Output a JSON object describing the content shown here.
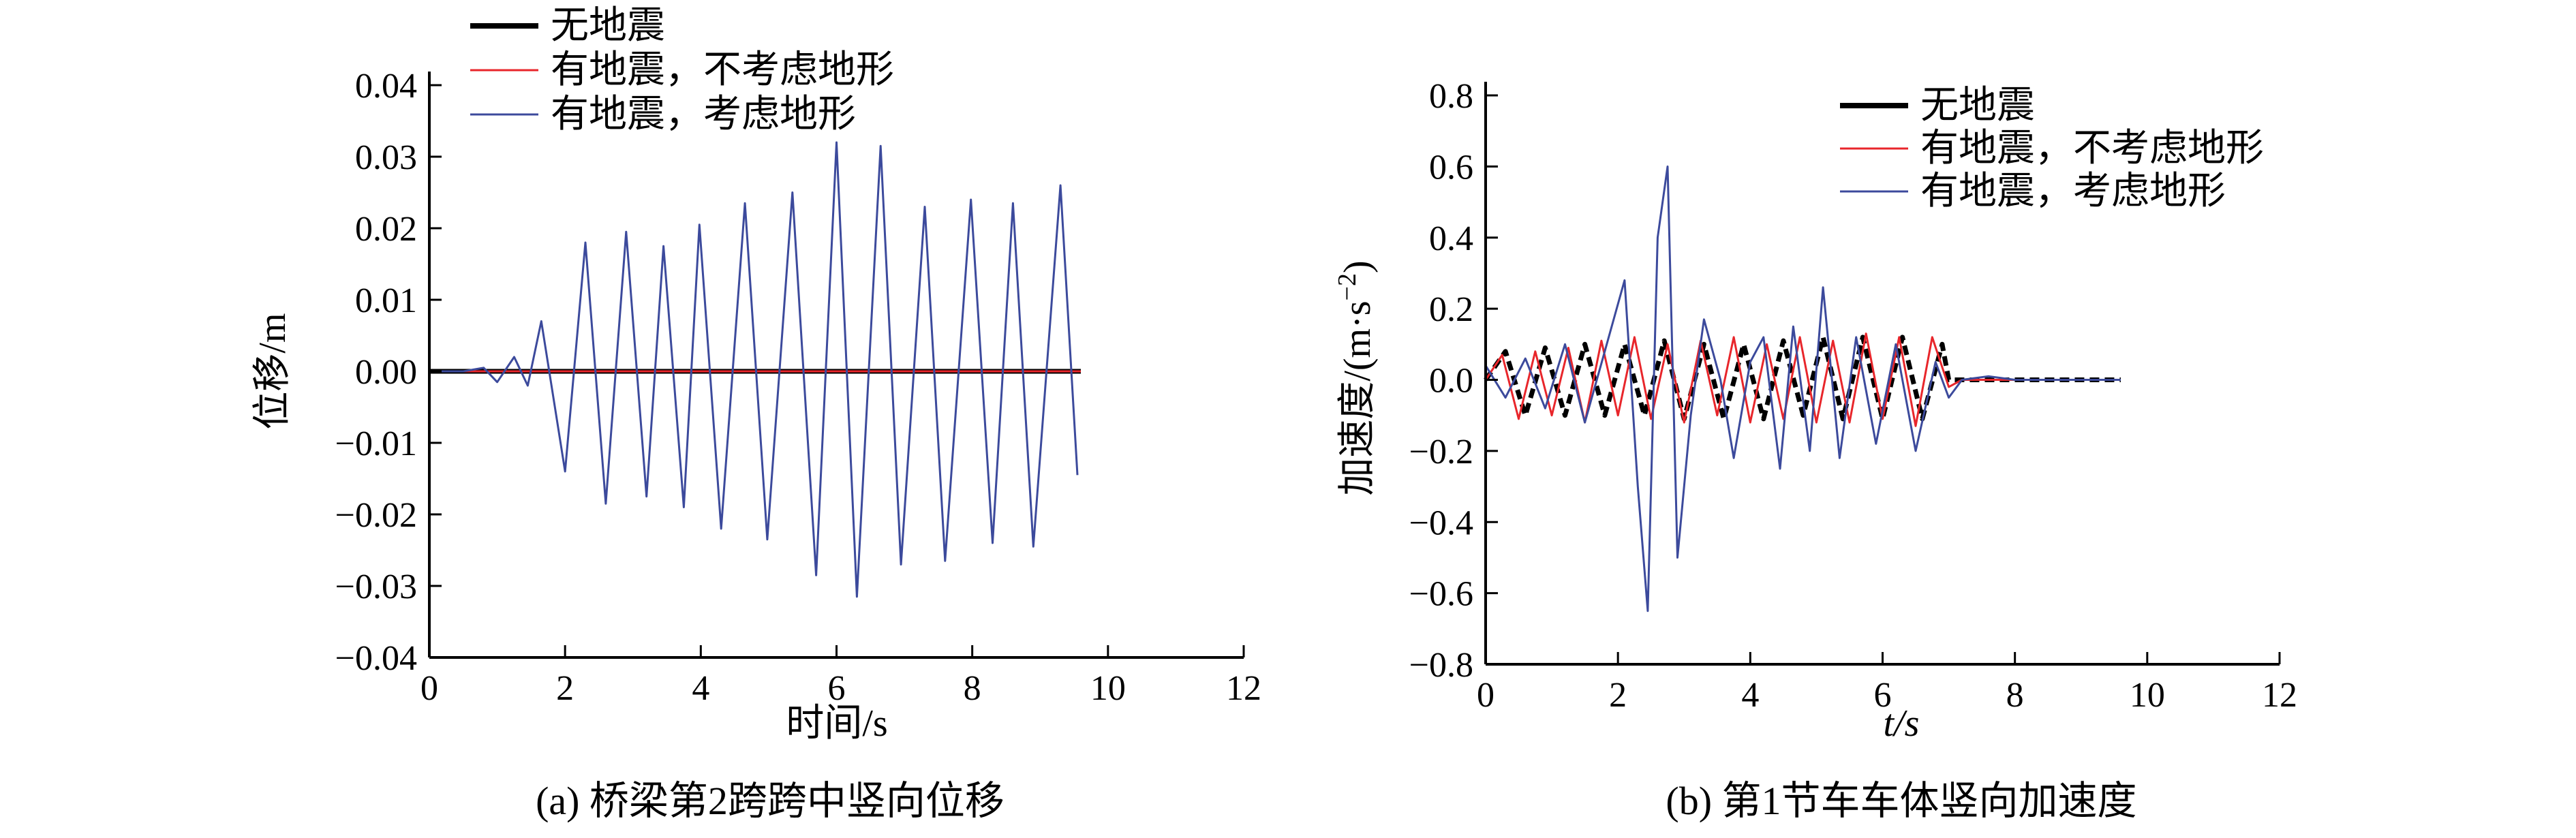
{
  "colors": {
    "no_quake": "#000000",
    "quake_no_terrain": "#e8262b",
    "quake_terrain": "#3c4a9c"
  },
  "legend": [
    "无地震",
    "有地震，不考虑地形",
    "有地震，考虑地形"
  ],
  "chart_data": [
    {
      "type": "line",
      "caption": "(a) 桥梁第2跨跨中竖向位移",
      "xlabel": "时间/s",
      "ylabel": "位移/m",
      "xlim": [
        0,
        12
      ],
      "ylim": [
        -0.04,
        0.04
      ],
      "xticks": [
        "0",
        "2",
        "4",
        "6",
        "8",
        "10",
        "12"
      ],
      "yticks": [
        "0.04",
        "0.03",
        "0.02",
        "0.01",
        "0.00",
        "−0.01",
        "−0.02",
        "−0.03",
        "−0.04"
      ],
      "legend_position": "top-left",
      "series": [
        {
          "name": "无地震",
          "color": "#000000",
          "style": "thick",
          "x": [
            0,
            1,
            2,
            3,
            4,
            5,
            6,
            7,
            8,
            9,
            9.6
          ],
          "y": [
            0,
            0,
            0,
            0,
            0,
            0,
            0,
            0,
            0,
            0,
            0
          ]
        },
        {
          "name": "有地震，不考虑地形",
          "color": "#e8262b",
          "style": "thin",
          "x": [
            0,
            1,
            2,
            3,
            4,
            5,
            6,
            7,
            8,
            9,
            9.6
          ],
          "y": [
            0,
            0,
            0,
            0,
            0,
            0,
            0,
            0,
            0,
            0,
            0
          ]
        },
        {
          "name": "有地震，考虑地形",
          "color": "#3c4a9c",
          "style": "thin",
          "x": [
            0,
            0.5,
            0.8,
            1.0,
            1.25,
            1.45,
            1.65,
            2.0,
            2.3,
            2.6,
            2.9,
            3.2,
            3.45,
            3.75,
            3.98,
            4.3,
            4.65,
            4.98,
            5.35,
            5.7,
            6.0,
            6.3,
            6.65,
            6.95,
            7.3,
            7.6,
            7.98,
            8.3,
            8.6,
            8.9,
            9.3,
            9.55
          ],
          "y": [
            0,
            0,
            0.0005,
            -0.0015,
            0.002,
            -0.002,
            0.007,
            -0.014,
            0.018,
            -0.0185,
            0.0195,
            -0.0175,
            0.0175,
            -0.019,
            0.0205,
            -0.022,
            0.0235,
            -0.0235,
            0.025,
            -0.0285,
            0.032,
            -0.0315,
            0.0315,
            -0.027,
            0.023,
            -0.0265,
            0.024,
            -0.024,
            0.0235,
            -0.0245,
            0.026,
            -0.0145
          ]
        }
      ]
    },
    {
      "type": "line",
      "caption": "(b) 第1节车车体竖向加速度",
      "xlabel": "t/s",
      "ylabel": "加速度/(m·s",
      "ylabel_unit_sup": "−2",
      "ylabel_close": ")",
      "xlim": [
        0,
        12
      ],
      "ylim": [
        -0.8,
        0.8
      ],
      "xticks": [
        "0",
        "2",
        "4",
        "6",
        "8",
        "10",
        "12"
      ],
      "yticks": [
        "0.8",
        "0.6",
        "0.4",
        "0.2",
        "0.0",
        "−0.2",
        "−0.4",
        "−0.6",
        "−0.8"
      ],
      "legend_position": "top-right",
      "series": [
        {
          "name": "无地震",
          "color": "#000000",
          "style": "thick-dash",
          "x": [
            0,
            0.3,
            0.6,
            0.9,
            1.2,
            1.5,
            1.8,
            2.1,
            2.4,
            2.7,
            3.0,
            3.3,
            3.6,
            3.9,
            4.2,
            4.5,
            4.8,
            5.1,
            5.4,
            5.7,
            6.0,
            6.3,
            6.6,
            6.9,
            7.0,
            7.2,
            7.6,
            8.0,
            9.6
          ],
          "y": [
            0,
            0.08,
            -0.1,
            0.09,
            -0.1,
            0.1,
            -0.1,
            0.1,
            -0.1,
            0.11,
            -0.11,
            0.1,
            -0.11,
            0.1,
            -0.11,
            0.11,
            -0.1,
            0.12,
            -0.11,
            0.12,
            -0.11,
            0.12,
            -0.11,
            0.1,
            0.0,
            0.0,
            0.0,
            0.0,
            0.0
          ]
        },
        {
          "name": "有地震，不考虑地形",
          "color": "#e8262b",
          "style": "thin",
          "x": [
            0,
            0.25,
            0.5,
            0.75,
            1.0,
            1.25,
            1.5,
            1.75,
            2.0,
            2.25,
            2.5,
            2.75,
            3.0,
            3.25,
            3.5,
            3.75,
            4.0,
            4.25,
            4.5,
            4.75,
            5.0,
            5.25,
            5.5,
            5.75,
            6.0,
            6.25,
            6.5,
            6.75,
            7.0,
            7.2,
            7.6,
            8.0,
            9.6
          ],
          "y": [
            0,
            0.07,
            -0.11,
            0.08,
            -0.1,
            0.09,
            -0.12,
            0.11,
            -0.1,
            0.12,
            -0.11,
            0.1,
            -0.12,
            0.11,
            -0.1,
            0.12,
            -0.12,
            0.1,
            -0.11,
            0.12,
            -0.12,
            0.11,
            -0.12,
            0.13,
            -0.11,
            0.12,
            -0.13,
            0.12,
            -0.02,
            0.0,
            0.0,
            0.0,
            0.0
          ]
        },
        {
          "name": "有地震，考虑地形",
          "color": "#3c4a9c",
          "style": "thin",
          "x": [
            0,
            0.3,
            0.6,
            0.9,
            1.2,
            1.5,
            1.8,
            2.1,
            2.3,
            2.45,
            2.6,
            2.75,
            2.9,
            3.1,
            3.3,
            3.55,
            3.75,
            4.0,
            4.2,
            4.45,
            4.65,
            4.9,
            5.1,
            5.35,
            5.6,
            5.9,
            6.2,
            6.5,
            6.8,
            7.0,
            7.2,
            7.6,
            8.0,
            9.6
          ],
          "y": [
            0.04,
            -0.05,
            0.06,
            -0.08,
            0.1,
            -0.12,
            0.08,
            0.28,
            -0.3,
            -0.65,
            0.4,
            0.6,
            -0.5,
            -0.1,
            0.17,
            0.0,
            -0.22,
            0.05,
            0.12,
            -0.25,
            0.15,
            -0.2,
            0.26,
            -0.22,
            0.12,
            -0.18,
            0.1,
            -0.2,
            0.05,
            -0.05,
            0.0,
            0.01,
            0.0,
            0.0
          ]
        }
      ]
    }
  ]
}
